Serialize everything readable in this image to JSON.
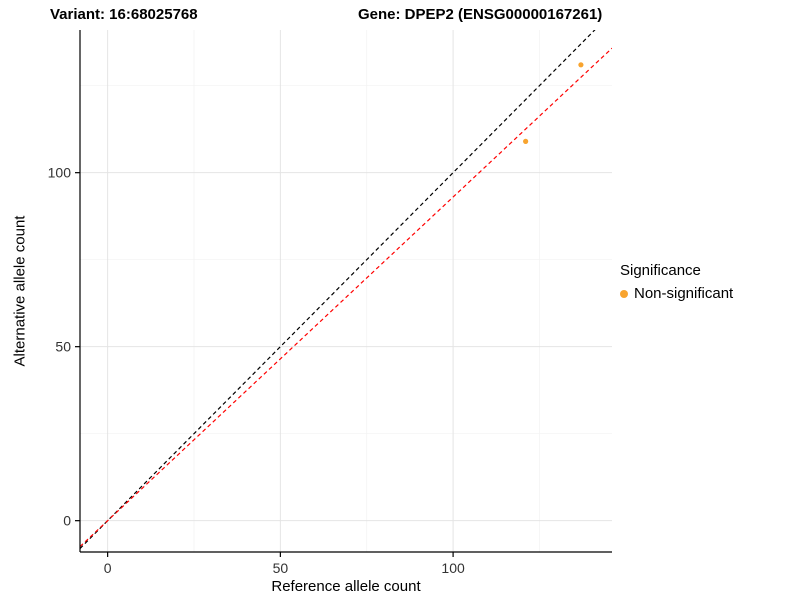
{
  "chart_data": {
    "type": "scatter",
    "title_left": "Variant: 16:68025768",
    "title_right": "Gene: DPEP2 (ENSG00000167261)",
    "xlabel": "Reference allele count",
    "ylabel": "Alternative allele count",
    "xlim": [
      -8,
      146
    ],
    "ylim": [
      -9,
      141
    ],
    "xticks": [
      0,
      50,
      100
    ],
    "yticks": [
      0,
      50,
      100
    ],
    "minor_xticks": [
      25,
      75,
      125
    ],
    "minor_yticks": [
      25,
      75,
      125
    ],
    "grid_major_color": "#e4e4e4",
    "grid_minor_color": "#f2f2f2",
    "axis_line_color": "#000000",
    "tick_label_color": "#333333",
    "point_color": "#F8A42F",
    "point_radius": 2.6,
    "points": [
      {
        "x": 121,
        "y": 109
      },
      {
        "x": 137,
        "y": 131
      }
    ],
    "lines": [
      {
        "name": "identity-line",
        "slope": 1.0,
        "intercept": 0,
        "color": "#000000",
        "dash": "4,3"
      },
      {
        "name": "fit-line",
        "slope": 0.93,
        "intercept": 0,
        "color": "#ff0000",
        "dash": "4,3"
      }
    ],
    "legend": {
      "title": "Significance",
      "items": [
        {
          "label": "Non-significant",
          "color": "#F8A42F"
        }
      ]
    }
  }
}
